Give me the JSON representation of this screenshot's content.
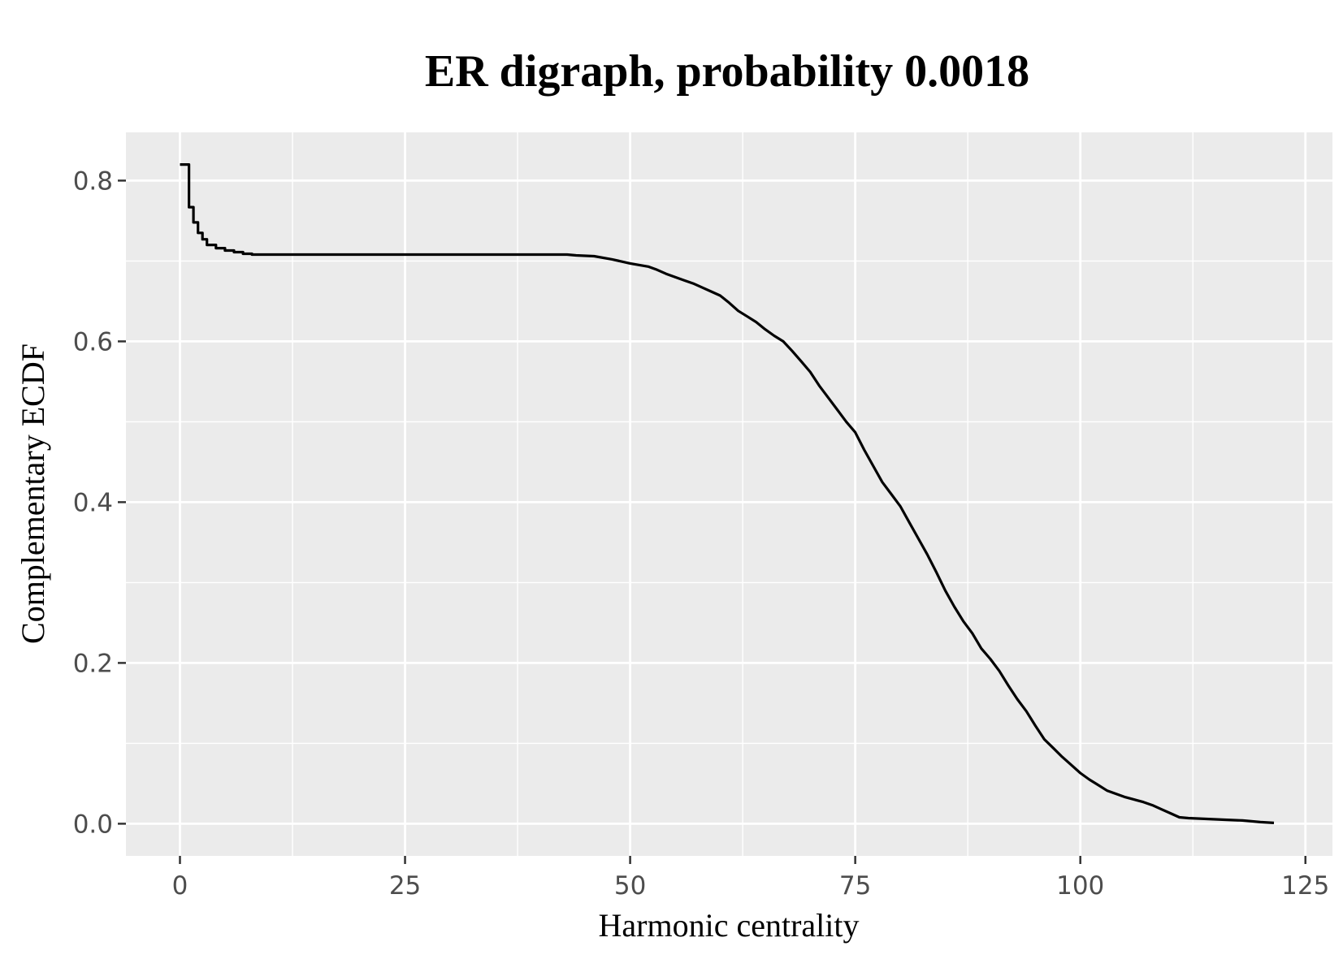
{
  "chart_data": {
    "type": "line",
    "step": true,
    "title": "ER digraph, probability 0.0018",
    "xlabel": "Harmonic centrality",
    "ylabel": "Complementary ECDF",
    "xlim": [
      -6,
      128
    ],
    "ylim": [
      -0.04,
      0.86
    ],
    "x_ticks": [
      0,
      25,
      50,
      75,
      100,
      125
    ],
    "x_tick_labels": [
      "0",
      "25",
      "50",
      "75",
      "100",
      "125"
    ],
    "y_ticks": [
      0.0,
      0.2,
      0.4,
      0.6,
      0.8
    ],
    "y_tick_labels": [
      "0.0",
      "0.2",
      "0.4",
      "0.6",
      "0.8"
    ],
    "grid": true,
    "background": "#ebebeb",
    "grid_color": "#ffffff",
    "line_color": "#000000",
    "series": [
      {
        "points": [
          [
            0,
            0.82
          ],
          [
            1,
            0.82
          ],
          [
            1,
            0.767
          ],
          [
            1.5,
            0.767
          ],
          [
            1.5,
            0.748
          ],
          [
            2,
            0.748
          ],
          [
            2,
            0.735
          ],
          [
            2.5,
            0.735
          ],
          [
            2.5,
            0.727
          ],
          [
            3,
            0.727
          ],
          [
            3,
            0.72
          ],
          [
            4,
            0.72
          ],
          [
            4,
            0.716
          ],
          [
            5,
            0.716
          ],
          [
            5,
            0.713
          ],
          [
            6,
            0.713
          ],
          [
            6,
            0.711
          ],
          [
            7,
            0.711
          ],
          [
            7,
            0.709
          ],
          [
            8,
            0.709
          ],
          [
            8,
            0.708
          ],
          [
            30,
            0.708
          ],
          [
            43,
            0.708
          ],
          [
            44,
            0.707
          ],
          [
            46,
            0.706
          ],
          [
            48,
            0.702
          ],
          [
            50,
            0.697
          ],
          [
            52,
            0.693
          ],
          [
            53,
            0.689
          ],
          [
            54,
            0.684
          ],
          [
            55,
            0.68
          ],
          [
            56,
            0.676
          ],
          [
            57,
            0.672
          ],
          [
            58,
            0.667
          ],
          [
            59,
            0.662
          ],
          [
            60,
            0.657
          ],
          [
            61,
            0.648
          ],
          [
            62,
            0.638
          ],
          [
            63,
            0.631
          ],
          [
            64,
            0.624
          ],
          [
            65,
            0.615
          ],
          [
            66,
            0.607
          ],
          [
            67,
            0.6
          ],
          [
            68,
            0.588
          ],
          [
            69,
            0.575
          ],
          [
            70,
            0.562
          ],
          [
            71,
            0.545
          ],
          [
            72,
            0.53
          ],
          [
            73,
            0.515
          ],
          [
            74,
            0.5
          ],
          [
            75,
            0.487
          ],
          [
            76,
            0.465
          ],
          [
            77,
            0.445
          ],
          [
            78,
            0.425
          ],
          [
            79,
            0.41
          ],
          [
            80,
            0.395
          ],
          [
            81,
            0.375
          ],
          [
            82,
            0.355
          ],
          [
            83,
            0.335
          ],
          [
            84,
            0.313
          ],
          [
            85,
            0.29
          ],
          [
            86,
            0.27
          ],
          [
            87,
            0.252
          ],
          [
            88,
            0.237
          ],
          [
            89,
            0.218
          ],
          [
            90,
            0.205
          ],
          [
            91,
            0.19
          ],
          [
            92,
            0.172
          ],
          [
            93,
            0.155
          ],
          [
            94,
            0.14
          ],
          [
            95,
            0.122
          ],
          [
            96,
            0.105
          ],
          [
            97,
            0.094
          ],
          [
            98,
            0.083
          ],
          [
            99,
            0.073
          ],
          [
            100,
            0.063
          ],
          [
            101,
            0.055
          ],
          [
            102,
            0.048
          ],
          [
            103,
            0.041
          ],
          [
            104,
            0.037
          ],
          [
            105,
            0.033
          ],
          [
            106,
            0.03
          ],
          [
            107,
            0.027
          ],
          [
            108,
            0.023
          ],
          [
            109,
            0.018
          ],
          [
            110,
            0.013
          ],
          [
            111,
            0.008
          ],
          [
            112,
            0.007
          ],
          [
            114,
            0.006
          ],
          [
            116,
            0.005
          ],
          [
            118,
            0.004
          ],
          [
            120,
            0.002
          ],
          [
            121.5,
            0.001
          ]
        ]
      }
    ]
  }
}
